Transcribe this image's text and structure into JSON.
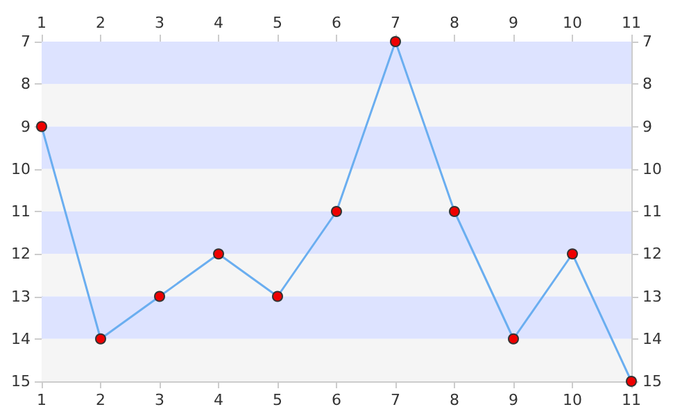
{
  "chart_data": {
    "type": "line",
    "x": [
      1,
      2,
      3,
      4,
      5,
      6,
      7,
      8,
      9,
      10,
      11
    ],
    "series": [
      {
        "color": "#6aaef0",
        "colors": [
          "#ee0000",
          "#ee0000",
          "#ee0000",
          "#ee0000",
          "#ee0000",
          "#ee0000",
          "#ee0000",
          "#ee0000",
          "#ee0000",
          "#ee0000",
          "#ee0000"
        ],
        "values": [
          9,
          14,
          13,
          12,
          13,
          11,
          7,
          11,
          14,
          12,
          15
        ]
      }
    ],
    "xlim": [
      1,
      11
    ],
    "xticks": [
      1,
      2,
      3,
      4,
      5,
      6,
      7,
      8,
      9,
      10,
      11
    ],
    "x2lim": [
      1,
      11
    ],
    "x2ticks": [
      1,
      2,
      3,
      4,
      5,
      6,
      7,
      8,
      9,
      10,
      11
    ],
    "ylim": [
      15,
      7
    ],
    "yticks": [
      7,
      8,
      9,
      10,
      11,
      12,
      13,
      14,
      15
    ],
    "y2lim": [
      15,
      7
    ],
    "y2ticks": [
      7,
      8,
      9,
      10,
      11,
      12,
      13,
      14,
      15
    ],
    "bands": [
      {
        "axis": "y",
        "from": 7,
        "to": 8,
        "color": "#dde3ff"
      },
      {
        "axis": "y",
        "from": 8,
        "to": 9,
        "color": "#f5f5f5"
      },
      {
        "axis": "y",
        "from": 9,
        "to": 10,
        "color": "#dde3ff"
      },
      {
        "axis": "y",
        "from": 10,
        "to": 11,
        "color": "#f5f5f5"
      },
      {
        "axis": "y",
        "from": 11,
        "to": 12,
        "color": "#dde3ff"
      },
      {
        "axis": "y",
        "from": 12,
        "to": 13,
        "color": "#f5f5f5"
      },
      {
        "axis": "y",
        "from": 13,
        "to": 14,
        "color": "#dde3ff"
      },
      {
        "axis": "y",
        "from": 14,
        "to": 15,
        "color": "#f5f5f5"
      }
    ],
    "marker": "circle",
    "line_style": "solid"
  }
}
